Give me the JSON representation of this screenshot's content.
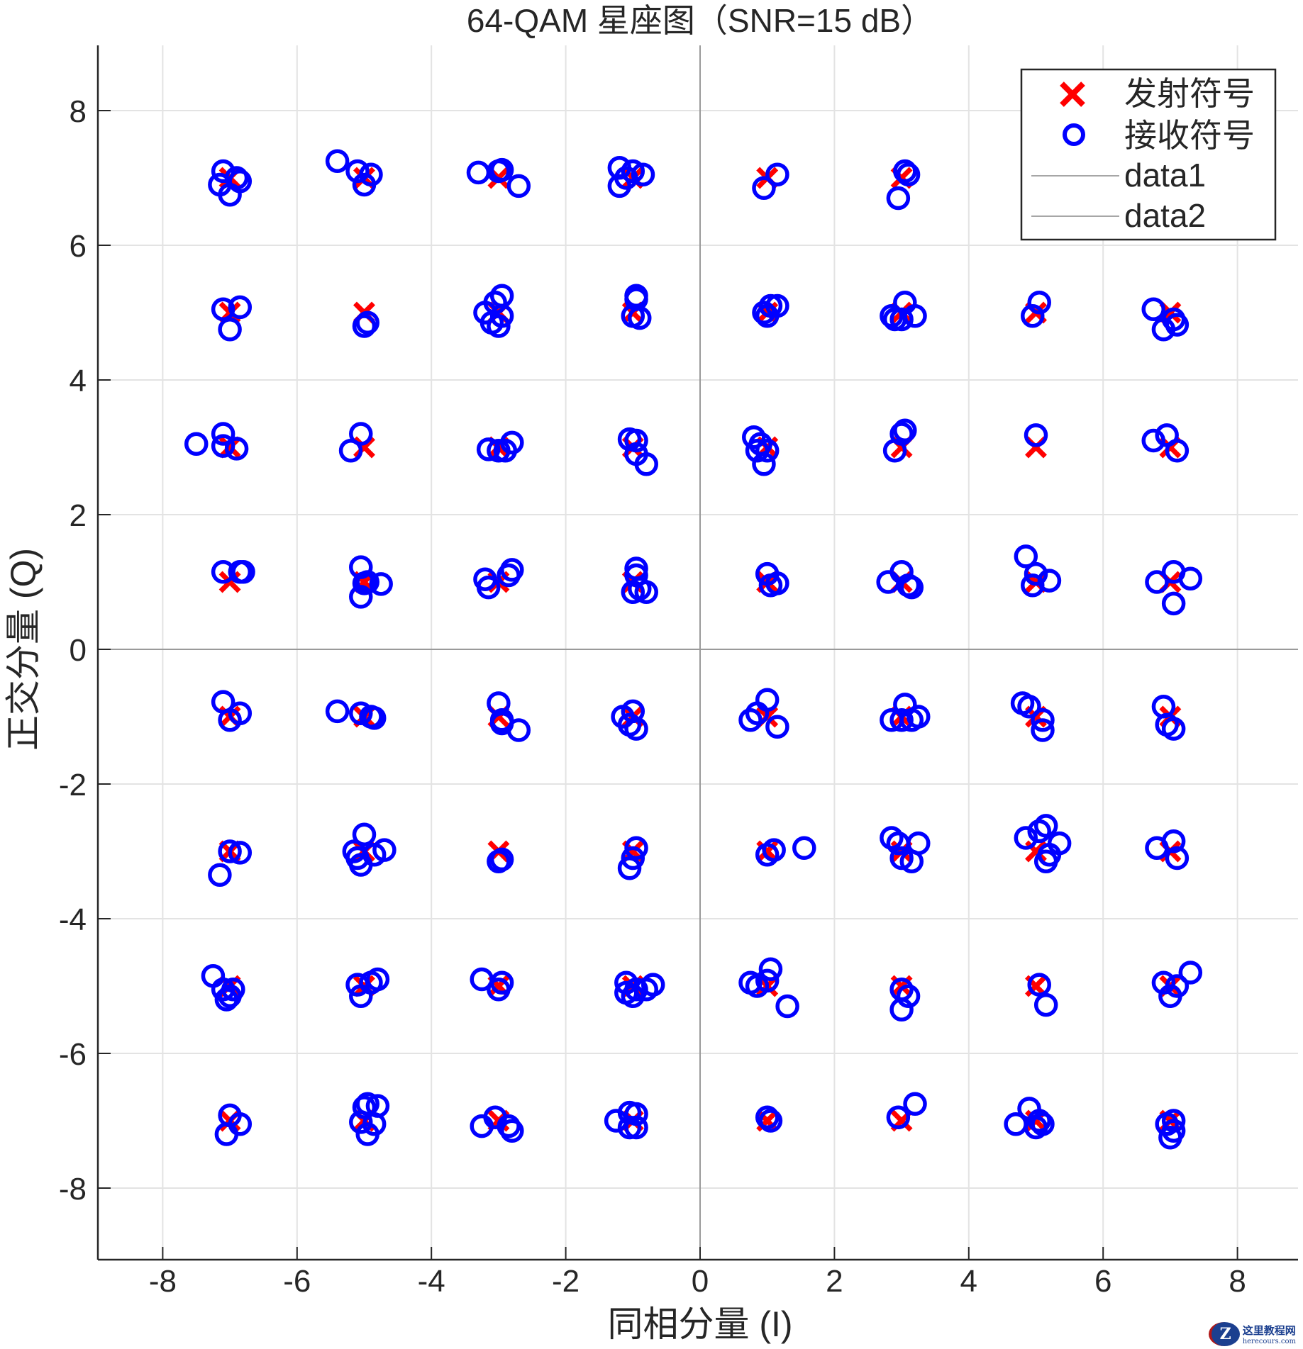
{
  "chart_data": {
    "type": "scatter",
    "title": "64-QAM 星座图（SNR=15 dB）",
    "xlabel": "同相分量 (I)",
    "ylabel": "正交分量 (Q)",
    "xlim": [
      -9,
      9
    ],
    "ylim": [
      -9,
      9
    ],
    "xticks": [
      -8,
      -6,
      -4,
      -2,
      0,
      2,
      4,
      6,
      8
    ],
    "yticks": [
      -8,
      -6,
      -4,
      -2,
      0,
      2,
      4,
      6,
      8
    ],
    "grid": true,
    "legend_position": "upper right",
    "legend": [
      {
        "label": "发射符号",
        "marker": "x",
        "color": "#ff0000"
      },
      {
        "label": "接收符号",
        "marker": "o",
        "color": "#0000ff"
      },
      {
        "label": "data1",
        "marker": "line",
        "color": "#a6a6a6"
      },
      {
        "label": "data2",
        "marker": "line",
        "color": "#a6a6a6"
      }
    ],
    "series": [
      {
        "name": "发射符号",
        "marker": "x",
        "color": "#ff0000",
        "levels": [
          -7,
          -5,
          -3,
          -1,
          1,
          3,
          5,
          7
        ],
        "description": "8x8 grid of ideal 64-QAM constellation points at I,Q in {-7,-5,-3,-1,1,3,5,7}"
      },
      {
        "name": "接收符号",
        "marker": "o",
        "color": "#0000ff",
        "points": [
          [
            -7.1,
            7.1
          ],
          [
            -7.15,
            6.9
          ],
          [
            -6.9,
            7.0
          ],
          [
            -7.0,
            6.75
          ],
          [
            -6.85,
            6.95
          ],
          [
            -5.4,
            7.25
          ],
          [
            -5.1,
            7.1
          ],
          [
            -5.0,
            6.9
          ],
          [
            -4.9,
            7.05
          ],
          [
            -3.3,
            7.08
          ],
          [
            -3.0,
            7.1
          ],
          [
            -2.95,
            7.12
          ],
          [
            -2.7,
            6.88
          ],
          [
            -1.2,
            7.15
          ],
          [
            -1.1,
            7.0
          ],
          [
            -1.2,
            6.88
          ],
          [
            -1.0,
            7.1
          ],
          [
            -0.85,
            7.05
          ],
          [
            0.95,
            6.85
          ],
          [
            1.15,
            7.05
          ],
          [
            2.95,
            6.7
          ],
          [
            3.05,
            7.1
          ],
          [
            3.1,
            7.05
          ],
          [
            -7.1,
            5.05
          ],
          [
            -6.85,
            5.08
          ],
          [
            -7.0,
            4.75
          ],
          [
            -4.95,
            4.85
          ],
          [
            -5.0,
            4.8
          ],
          [
            -3.2,
            5.0
          ],
          [
            -3.05,
            5.15
          ],
          [
            -2.95,
            5.25
          ],
          [
            -3.1,
            4.85
          ],
          [
            -2.95,
            4.95
          ],
          [
            -3.0,
            4.8
          ],
          [
            -0.95,
            5.25
          ],
          [
            -0.95,
            5.2
          ],
          [
            -1.0,
            4.95
          ],
          [
            -0.9,
            4.92
          ],
          [
            0.95,
            5.0
          ],
          [
            1.05,
            5.1
          ],
          [
            1.15,
            5.1
          ],
          [
            1.0,
            4.95
          ],
          [
            2.85,
            4.95
          ],
          [
            2.9,
            4.9
          ],
          [
            3.05,
            5.15
          ],
          [
            3.2,
            4.95
          ],
          [
            3.0,
            4.9
          ],
          [
            5.05,
            5.15
          ],
          [
            4.95,
            4.95
          ],
          [
            6.75,
            5.05
          ],
          [
            6.9,
            4.75
          ],
          [
            7.05,
            4.9
          ],
          [
            7.1,
            4.82
          ],
          [
            -7.5,
            3.05
          ],
          [
            -7.1,
            3.2
          ],
          [
            -7.1,
            3.02
          ],
          [
            -6.9,
            2.98
          ],
          [
            -5.2,
            2.95
          ],
          [
            -5.05,
            3.2
          ],
          [
            -3.15,
            2.97
          ],
          [
            -3.0,
            2.95
          ],
          [
            -2.9,
            2.95
          ],
          [
            -2.8,
            3.07
          ],
          [
            -1.05,
            3.12
          ],
          [
            -0.95,
            3.1
          ],
          [
            -0.95,
            2.9
          ],
          [
            -0.8,
            2.75
          ],
          [
            0.8,
            3.15
          ],
          [
            0.9,
            3.05
          ],
          [
            0.85,
            2.95
          ],
          [
            0.95,
            2.75
          ],
          [
            1.0,
            2.95
          ],
          [
            2.9,
            2.95
          ],
          [
            3.0,
            3.2
          ],
          [
            3.05,
            3.25
          ],
          [
            5.0,
            3.18
          ],
          [
            6.75,
            3.1
          ],
          [
            6.95,
            3.18
          ],
          [
            7.1,
            2.95
          ],
          [
            -7.1,
            1.15
          ],
          [
            -6.85,
            1.15
          ],
          [
            -6.8,
            1.15
          ],
          [
            -5.05,
            1.22
          ],
          [
            -5.0,
            0.98
          ],
          [
            -5.05,
            0.78
          ],
          [
            -4.75,
            0.97
          ],
          [
            -4.95,
            1.0
          ],
          [
            -3.2,
            1.04
          ],
          [
            -3.15,
            0.92
          ],
          [
            -2.85,
            1.1
          ],
          [
            -2.8,
            1.18
          ],
          [
            -0.95,
            1.2
          ],
          [
            -0.95,
            1.1
          ],
          [
            -0.9,
            0.9
          ],
          [
            -0.8,
            0.85
          ],
          [
            -1.0,
            0.85
          ],
          [
            1.0,
            1.12
          ],
          [
            1.05,
            0.95
          ],
          [
            1.15,
            0.98
          ],
          [
            2.8,
            1.0
          ],
          [
            3.0,
            1.15
          ],
          [
            3.1,
            0.95
          ],
          [
            3.15,
            0.92
          ],
          [
            4.85,
            1.38
          ],
          [
            5.0,
            1.12
          ],
          [
            5.2,
            1.02
          ],
          [
            4.95,
            0.95
          ],
          [
            6.8,
            1.0
          ],
          [
            7.05,
            1.15
          ],
          [
            7.3,
            1.05
          ],
          [
            7.05,
            0.68
          ],
          [
            -7.1,
            -0.78
          ],
          [
            -7.0,
            -1.05
          ],
          [
            -6.85,
            -0.95
          ],
          [
            -5.4,
            -0.92
          ],
          [
            -5.05,
            -0.95
          ],
          [
            -4.9,
            -1.0
          ],
          [
            -4.85,
            -1.02
          ],
          [
            -3.0,
            -0.8
          ],
          [
            -2.95,
            -1.05
          ],
          [
            -2.95,
            -1.1
          ],
          [
            -2.7,
            -1.2
          ],
          [
            -1.15,
            -1.0
          ],
          [
            -1.0,
            -0.92
          ],
          [
            -1.05,
            -1.12
          ],
          [
            -0.95,
            -1.18
          ],
          [
            0.75,
            -1.05
          ],
          [
            0.85,
            -0.95
          ],
          [
            1.0,
            -0.75
          ],
          [
            1.15,
            -1.15
          ],
          [
            2.85,
            -1.05
          ],
          [
            3.0,
            -1.05
          ],
          [
            3.05,
            -0.82
          ],
          [
            3.15,
            -1.05
          ],
          [
            3.25,
            -1.0
          ],
          [
            4.8,
            -0.8
          ],
          [
            4.9,
            -0.85
          ],
          [
            5.1,
            -1.05
          ],
          [
            5.1,
            -1.2
          ],
          [
            6.9,
            -0.85
          ],
          [
            6.95,
            -1.12
          ],
          [
            7.05,
            -1.18
          ],
          [
            -7.15,
            -3.35
          ],
          [
            -7.0,
            -3.0
          ],
          [
            -6.85,
            -3.02
          ],
          [
            -5.15,
            -3.0
          ],
          [
            -5.05,
            -3.2
          ],
          [
            -5.0,
            -2.75
          ],
          [
            -4.85,
            -3.05
          ],
          [
            -4.7,
            -2.98
          ],
          [
            -5.1,
            -3.1
          ],
          [
            -3.0,
            -3.15
          ],
          [
            -2.95,
            -3.12
          ],
          [
            -1.05,
            -3.25
          ],
          [
            -0.95,
            -2.95
          ],
          [
            -1.0,
            -3.1
          ],
          [
            1.0,
            -3.05
          ],
          [
            1.1,
            -2.98
          ],
          [
            1.55,
            -2.95
          ],
          [
            2.85,
            -2.8
          ],
          [
            2.95,
            -2.88
          ],
          [
            3.0,
            -3.1
          ],
          [
            3.15,
            -3.15
          ],
          [
            3.25,
            -2.88
          ],
          [
            4.85,
            -2.8
          ],
          [
            5.05,
            -2.7
          ],
          [
            5.15,
            -2.62
          ],
          [
            5.2,
            -3.05
          ],
          [
            5.35,
            -2.88
          ],
          [
            5.15,
            -3.15
          ],
          [
            6.8,
            -2.95
          ],
          [
            7.05,
            -2.85
          ],
          [
            7.1,
            -3.1
          ],
          [
            -7.25,
            -4.85
          ],
          [
            -7.1,
            -5.05
          ],
          [
            -6.95,
            -5.05
          ],
          [
            -7.0,
            -5.15
          ],
          [
            -7.05,
            -5.2
          ],
          [
            -5.1,
            -4.98
          ],
          [
            -4.8,
            -4.9
          ],
          [
            -5.05,
            -5.15
          ],
          [
            -4.9,
            -4.95
          ],
          [
            -3.25,
            -4.9
          ],
          [
            -2.95,
            -4.95
          ],
          [
            -3.0,
            -5.05
          ],
          [
            -1.1,
            -4.95
          ],
          [
            -1.1,
            -5.1
          ],
          [
            -0.95,
            -5.05
          ],
          [
            -0.7,
            -4.98
          ],
          [
            -1.0,
            -5.15
          ],
          [
            -0.8,
            -5.05
          ],
          [
            0.75,
            -4.95
          ],
          [
            0.85,
            -5.0
          ],
          [
            1.05,
            -4.75
          ],
          [
            1.0,
            -4.92
          ],
          [
            1.3,
            -5.3
          ],
          [
            3.0,
            -5.05
          ],
          [
            3.1,
            -5.15
          ],
          [
            3.0,
            -5.35
          ],
          [
            5.05,
            -4.98
          ],
          [
            5.15,
            -5.28
          ],
          [
            6.9,
            -4.95
          ],
          [
            7.0,
            -5.15
          ],
          [
            7.1,
            -5.0
          ],
          [
            7.3,
            -4.8
          ],
          [
            -7.05,
            -7.2
          ],
          [
            -7.0,
            -6.92
          ],
          [
            -6.85,
            -7.05
          ],
          [
            -5.0,
            -6.8
          ],
          [
            -4.95,
            -6.75
          ],
          [
            -4.8,
            -6.78
          ],
          [
            -5.05,
            -7.02
          ],
          [
            -4.85,
            -7.05
          ],
          [
            -4.95,
            -7.2
          ],
          [
            -3.25,
            -7.08
          ],
          [
            -3.05,
            -6.95
          ],
          [
            -2.85,
            -7.08
          ],
          [
            -2.8,
            -7.15
          ],
          [
            -1.25,
            -7.0
          ],
          [
            -1.05,
            -6.88
          ],
          [
            -0.95,
            -6.9
          ],
          [
            -0.95,
            -7.1
          ],
          [
            -1.05,
            -7.1
          ],
          [
            1.0,
            -6.95
          ],
          [
            1.05,
            -7.0
          ],
          [
            2.95,
            -6.95
          ],
          [
            3.2,
            -6.75
          ],
          [
            4.7,
            -7.05
          ],
          [
            4.9,
            -6.82
          ],
          [
            5.0,
            -7.1
          ],
          [
            5.05,
            -7.0
          ],
          [
            5.1,
            -7.05
          ],
          [
            6.95,
            -7.05
          ],
          [
            7.05,
            -7.0
          ],
          [
            7.05,
            -7.15
          ],
          [
            7.0,
            -7.25
          ]
        ]
      }
    ]
  },
  "watermark": {
    "logo_letter": "Z",
    "text_cn": "这里教程网",
    "text_en": "herecours.com"
  }
}
